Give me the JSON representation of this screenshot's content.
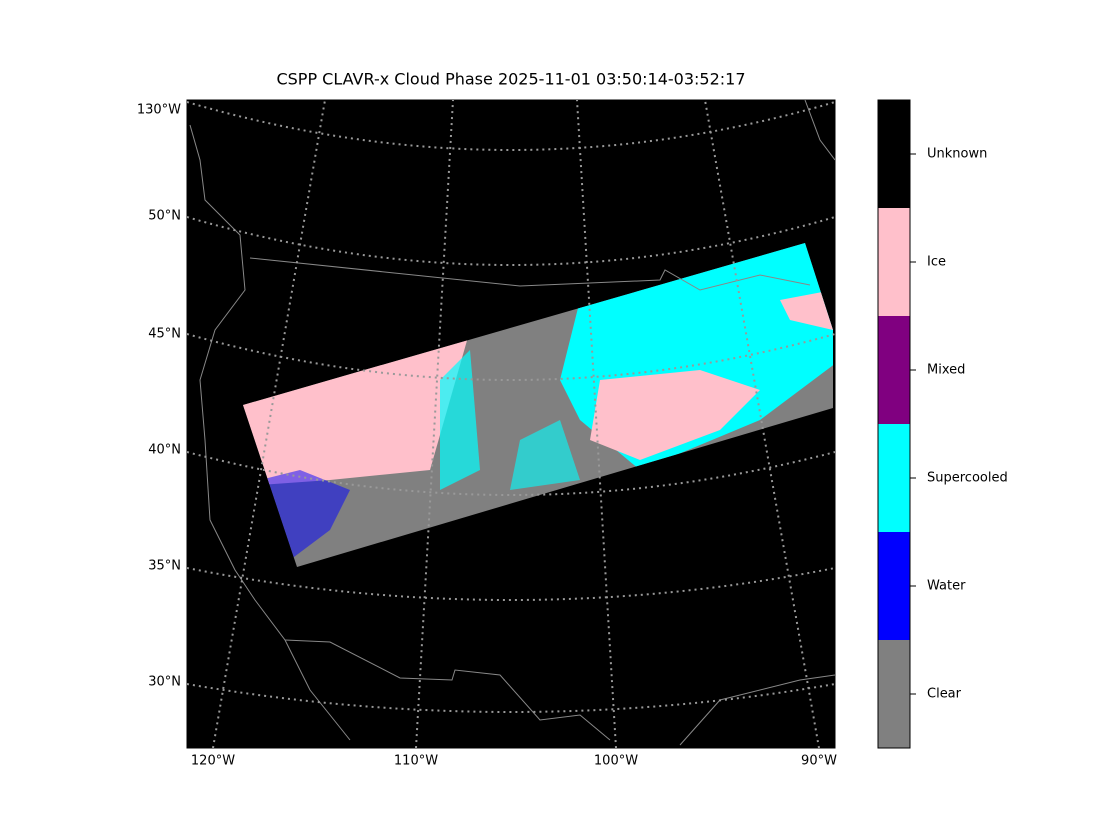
{
  "title": "CSPP CLAVR-x Cloud Phase 2025-11-01 03:50:14-03:52:17",
  "map": {
    "lat_labels": [
      "130°W",
      "50°N",
      "45°N",
      "40°N",
      "35°N",
      "30°N"
    ],
    "lon_labels": [
      "120°W",
      "110°W",
      "100°W",
      "90°W"
    ]
  },
  "legend": {
    "items": [
      {
        "label": "Unknown",
        "color": "#000000"
      },
      {
        "label": "Ice",
        "color": "#ffc0cb"
      },
      {
        "label": "Mixed",
        "color": "#800080"
      },
      {
        "label": "Supercooled",
        "color": "#00ffff"
      },
      {
        "label": "Water",
        "color": "#0000ff"
      },
      {
        "label": "Clear",
        "color": "#808080"
      }
    ]
  }
}
